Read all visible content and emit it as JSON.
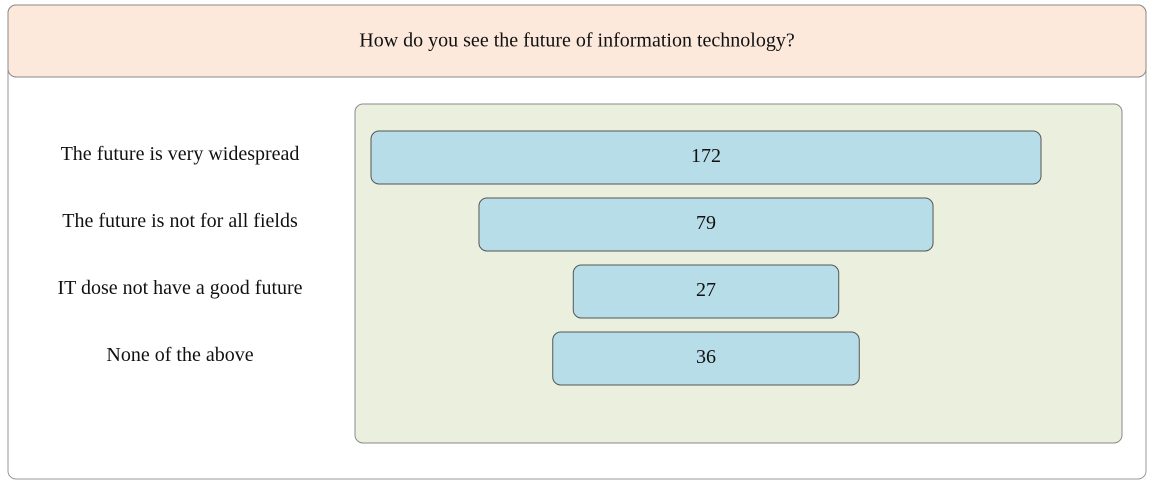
{
  "chart_data": {
    "type": "funnel",
    "title": "How do you see the future of information technology?",
    "categories": [
      "The future is very widespread",
      "The future is not for all fields",
      "IT dose not have a good future",
      "None of the above"
    ],
    "values": [
      172,
      79,
      27,
      36
    ],
    "color": "#b7dde8"
  }
}
